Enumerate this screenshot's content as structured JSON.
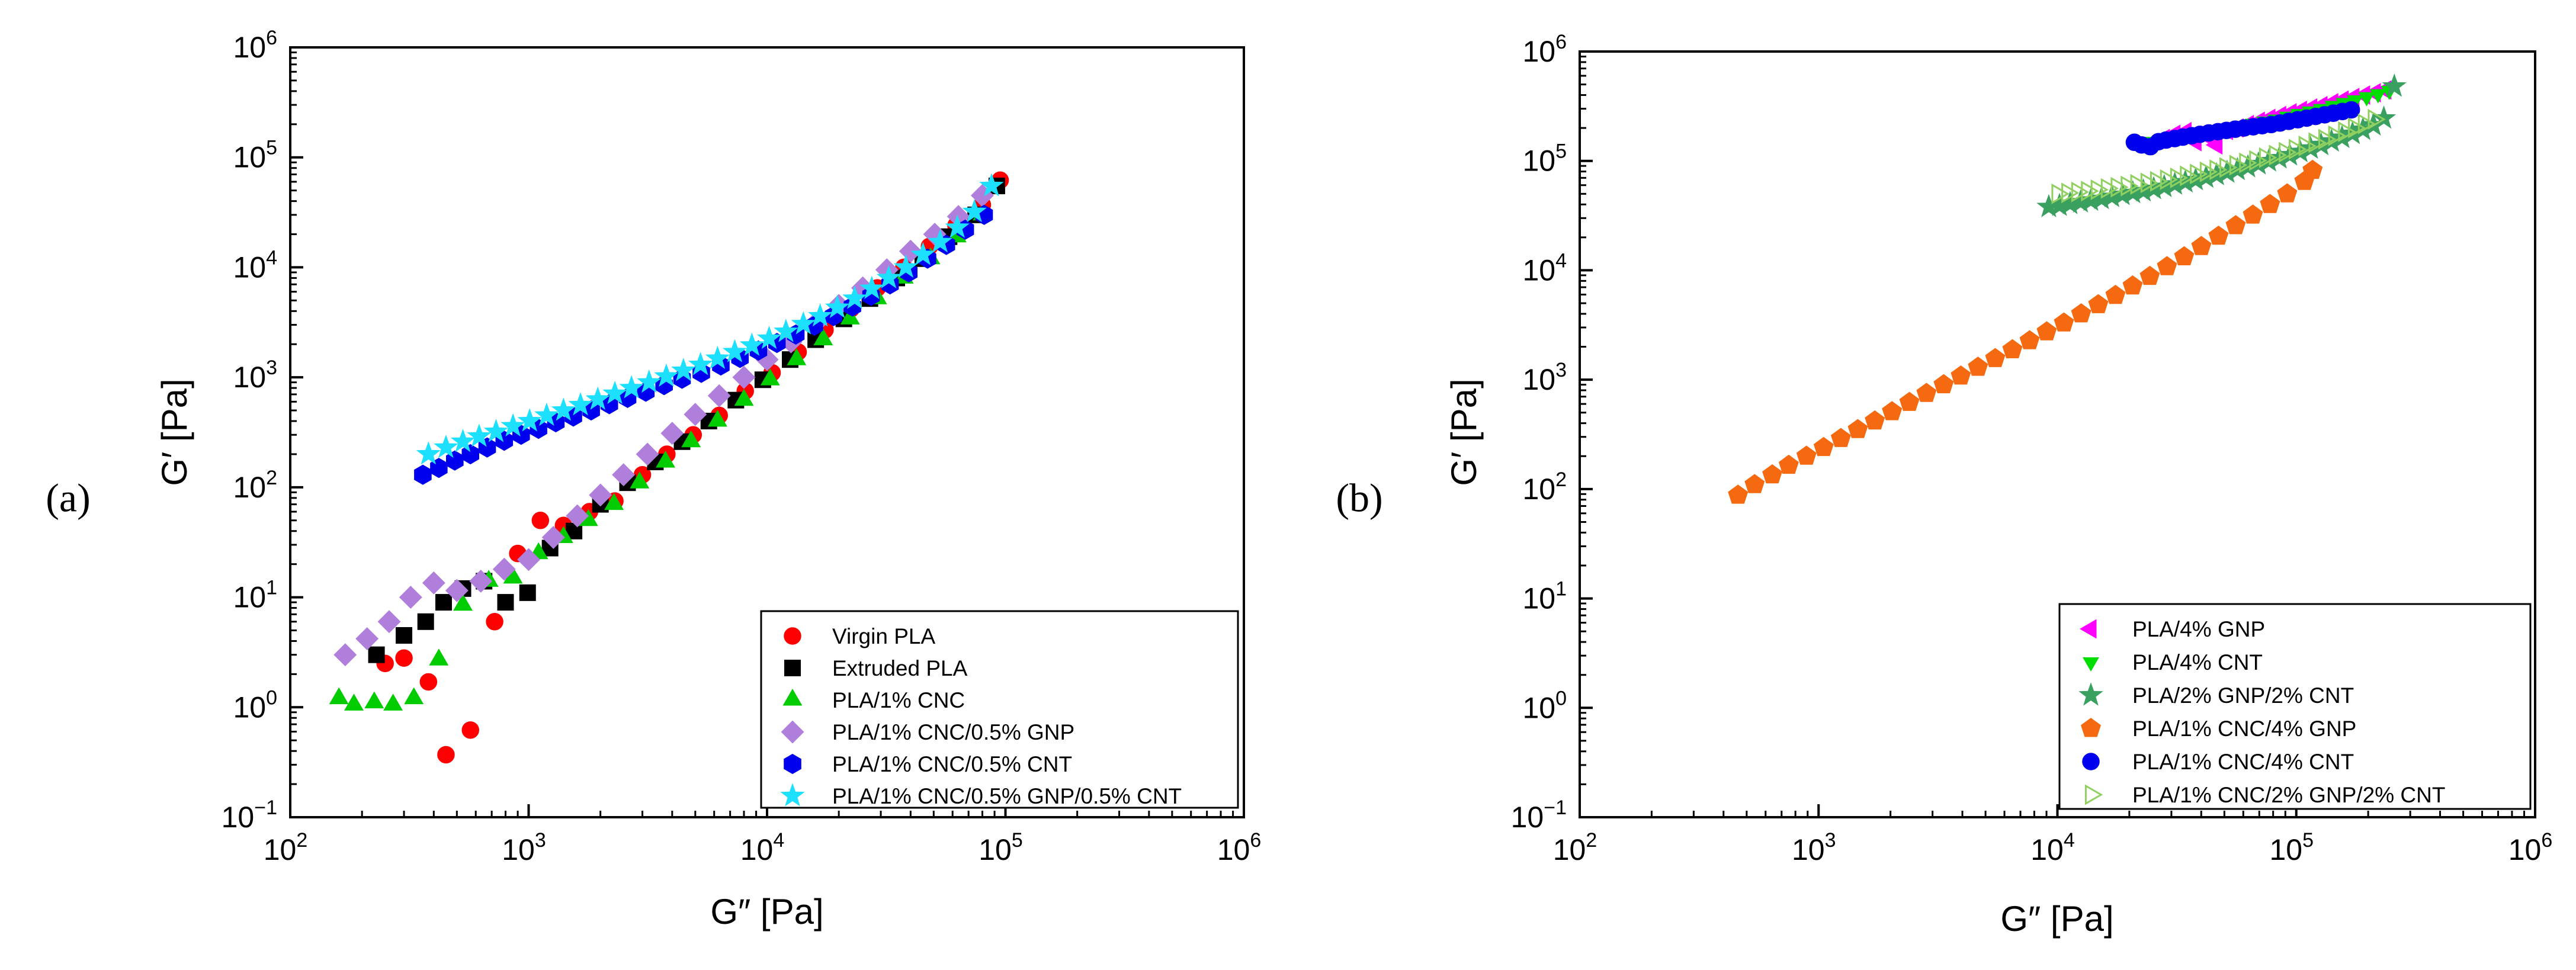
{
  "chart_data": [
    {
      "type": "scatter",
      "panel_label": "(a)",
      "title": "",
      "xlabel": "G″ [Pa]",
      "ylabel": "G′ [Pa]",
      "xscale": "log",
      "yscale": "log",
      "xlim": [
        100,
        1000000
      ],
      "ylim": [
        0.1,
        1000000
      ],
      "x_ticks": [
        {
          "base": "10",
          "exp": "2"
        },
        {
          "base": "10",
          "exp": "3"
        },
        {
          "base": "10",
          "exp": "4"
        },
        {
          "base": "10",
          "exp": "5"
        },
        {
          "base": "10",
          "exp": "6"
        }
      ],
      "y_ticks": [
        {
          "base": "10",
          "exp": "−1"
        },
        {
          "base": "10",
          "exp": "0"
        },
        {
          "base": "10",
          "exp": "1"
        },
        {
          "base": "10",
          "exp": "2"
        },
        {
          "base": "10",
          "exp": "3"
        },
        {
          "base": "10",
          "exp": "4"
        },
        {
          "base": "10",
          "exp": "5"
        },
        {
          "base": "10",
          "exp": "6"
        }
      ],
      "legend_position": "bottom-right",
      "series": [
        {
          "name": "Virgin PLA",
          "marker": "circle",
          "color": "#ff0000",
          "filled": true,
          "x": [
            250,
            300,
            380,
            450,
            570,
            720,
            900,
            1120,
            1400,
            1800,
            2300,
            3000,
            3800,
            4900,
            6300,
            8100,
            10500,
            13500,
            17500,
            22500,
            29000,
            37500,
            48000,
            62000,
            80000,
            95000
          ],
          "y": [
            2.5,
            2.8,
            1.7,
            0.37,
            0.62,
            6,
            25,
            50,
            45,
            60,
            75,
            130,
            200,
            300,
            450,
            750,
            1100,
            1700,
            2700,
            4200,
            6500,
            10000,
            15500,
            24000,
            37000,
            62000
          ]
        },
        {
          "name": "Extruded PLA",
          "marker": "square",
          "color": "#000000",
          "filled": true,
          "x": [
            230,
            300,
            370,
            440,
            530,
            650,
            800,
            990,
            1230,
            1550,
            2000,
            2600,
            3400,
            4400,
            5700,
            7400,
            9600,
            12500,
            16000,
            21000,
            27000,
            35000,
            45000,
            58000,
            75000,
            92000
          ],
          "y": [
            3,
            4.5,
            6,
            9,
            12,
            14,
            9,
            11,
            28,
            40,
            70,
            110,
            170,
            260,
            400,
            620,
            950,
            1450,
            2200,
            3400,
            5200,
            8000,
            12000,
            19000,
            30000,
            55000
          ]
        },
        {
          "name": "PLA/1% CNC",
          "marker": "triangle",
          "color": "#00cc00",
          "filled": true,
          "x": [
            160,
            185,
            225,
            270,
            330,
            420,
            530,
            680,
            860,
            1100,
            1400,
            1780,
            2280,
            2920,
            3750,
            4800,
            6200,
            8000,
            10300,
            13300,
            17200,
            22300,
            29000,
            37500,
            48500,
            62500,
            80000
          ],
          "y": [
            1.2,
            1.05,
            1.1,
            1.05,
            1.2,
            2.7,
            8.5,
            14,
            15,
            25,
            35,
            50,
            70,
            110,
            170,
            260,
            400,
            620,
            950,
            1450,
            2200,
            3400,
            5200,
            8000,
            12000,
            19000,
            30000
          ]
        },
        {
          "name": "PLA/1% CNC/0.5% GNP",
          "marker": "diamond",
          "color": "#b07fdb",
          "filled": true,
          "x": [
            170,
            210,
            260,
            320,
            400,
            500,
            630,
            790,
            1000,
            1270,
            1600,
            2000,
            2500,
            3150,
            4000,
            5000,
            6300,
            8000,
            10000,
            12600,
            16000,
            20000,
            25200,
            31800,
            40000,
            50500,
            63500,
            80000
          ],
          "y": [
            3,
            4.2,
            6,
            10,
            13.5,
            11.5,
            14,
            18,
            22,
            35,
            55,
            85,
            130,
            200,
            310,
            460,
            680,
            1000,
            1450,
            2100,
            3100,
            4500,
            6500,
            9500,
            14000,
            20000,
            29000,
            45000
          ]
        },
        {
          "name": "PLA/1% CNC/0.5% CNT",
          "marker": "hexagon",
          "color": "#0000ee",
          "filled": true,
          "x": [
            360,
            420,
            490,
            570,
            670,
            790,
            930,
            1100,
            1300,
            1540,
            1830,
            2180,
            2600,
            3100,
            3700,
            4400,
            5300,
            6400,
            7700,
            9200,
            11000,
            13200,
            15800,
            19000,
            22800,
            27300,
            32800,
            39300,
            47100,
            56500,
            67800,
            81400
          ],
          "y": [
            130,
            150,
            175,
            200,
            230,
            265,
            300,
            340,
            390,
            440,
            500,
            570,
            650,
            740,
            850,
            970,
            1100,
            1280,
            1500,
            1750,
            2050,
            2450,
            2950,
            3600,
            4400,
            5500,
            7000,
            9000,
            12000,
            16000,
            22000,
            30000
          ]
        },
        {
          "name": "PLA/1% CNC/0.5% GNP/0.5% CNT",
          "marker": "star",
          "color": "#1de0ff",
          "filled": true,
          "x": [
            380,
            450,
            530,
            620,
            730,
            860,
            1010,
            1190,
            1400,
            1650,
            1950,
            2300,
            2700,
            3200,
            3780,
            4460,
            5260,
            6200,
            7320,
            8640,
            10200,
            12000,
            14200,
            16700,
            19700,
            23300,
            27500,
            32400,
            38200,
            45100,
            53200,
            62800,
            74100,
            87400
          ],
          "y": [
            200,
            230,
            260,
            290,
            320,
            360,
            400,
            450,
            500,
            560,
            630,
            710,
            800,
            900,
            1020,
            1150,
            1300,
            1480,
            1700,
            1950,
            2250,
            2600,
            3050,
            3600,
            4300,
            5200,
            6400,
            8000,
            10000,
            13000,
            17000,
            23000,
            32000,
            55000
          ]
        }
      ]
    },
    {
      "type": "scatter",
      "panel_label": "(b)",
      "title": "",
      "xlabel": "G″ [Pa]",
      "ylabel": "G′ [Pa]",
      "xscale": "log",
      "yscale": "log",
      "xlim": [
        100,
        1000000
      ],
      "ylim": [
        0.1,
        1000000
      ],
      "x_ticks": [
        {
          "base": "10",
          "exp": "2"
        },
        {
          "base": "10",
          "exp": "3"
        },
        {
          "base": "10",
          "exp": "4"
        },
        {
          "base": "10",
          "exp": "5"
        },
        {
          "base": "10",
          "exp": "6"
        }
      ],
      "y_ticks": [
        {
          "base": "10",
          "exp": "−1"
        },
        {
          "base": "10",
          "exp": "0"
        },
        {
          "base": "10",
          "exp": "1"
        },
        {
          "base": "10",
          "exp": "2"
        },
        {
          "base": "10",
          "exp": "3"
        },
        {
          "base": "10",
          "exp": "4"
        },
        {
          "base": "10",
          "exp": "5"
        },
        {
          "base": "10",
          "exp": "6"
        }
      ],
      "legend_position": "bottom-right",
      "series": [
        {
          "name": "PLA/4% GNP",
          "marker": "triangle-left",
          "color": "#ff00ff",
          "filled": true,
          "x": [
            28000,
            31000,
            34500,
            38000,
            42000,
            46500,
            51500,
            57000,
            63000,
            70000,
            77500,
            86000,
            95000,
            105000,
            116000,
            128000,
            142000,
            157000,
            174000,
            193000,
            214000,
            237000
          ],
          "y": [
            160000,
            175000,
            185000,
            150000,
            170000,
            140000,
            190000,
            200000,
            215000,
            230000,
            245000,
            260000,
            275000,
            290000,
            305000,
            320000,
            340000,
            360000,
            380000,
            400000,
            420000,
            445000
          ]
        },
        {
          "name": "PLA/4% CNT",
          "marker": "triangle-down",
          "color": "#00dd00",
          "filled": true,
          "x": [
            22000,
            24500,
            27500,
            30500,
            34000,
            38000,
            42500,
            47500,
            53000,
            59000,
            66000,
            73500,
            82000,
            91500,
            102000,
            114000,
            127000,
            142000,
            158000,
            176000,
            197000,
            220000,
            245000
          ],
          "y": [
            145000,
            150000,
            160000,
            165000,
            170000,
            175000,
            185000,
            190000,
            200000,
            210000,
            220000,
            230000,
            240000,
            255000,
            270000,
            285000,
            300000,
            320000,
            340000,
            360000,
            385000,
            410000,
            440000
          ]
        },
        {
          "name": "PLA/2% GNP/2% CNT",
          "marker": "star",
          "color": "#3aa060",
          "filled": true,
          "x": [
            9200,
            10200,
            11300,
            12500,
            13800,
            15300,
            16900,
            18700,
            20700,
            22900,
            25300,
            28000,
            31000,
            34300,
            37900,
            41900,
            46400,
            51300,
            56700,
            62700,
            69400,
            76700,
            84900,
            93900,
            103800,
            114800,
            127000,
            140500,
            155400,
            171900,
            190100,
            210300,
            232600,
            257300
          ],
          "y": [
            38000,
            39000,
            40500,
            42000,
            43500,
            45000,
            47000,
            49000,
            51000,
            53000,
            55500,
            58000,
            61000,
            64000,
            67000,
            70500,
            74500,
            78500,
            83000,
            88000,
            93500,
            99500,
            106000,
            113000,
            121000,
            130000,
            140000,
            151000,
            163000,
            177000,
            193000,
            212000,
            245000,
            480000
          ]
        },
        {
          "name": "PLA/1% CNC/4% GNP",
          "marker": "pentagon",
          "color": "#f56a10",
          "filled": true,
          "x": [
            460,
            540,
            640,
            750,
            890,
            1050,
            1240,
            1460,
            1720,
            2030,
            2400,
            2830,
            3340,
            3940,
            4650,
            5490,
            6480,
            7650,
            9020,
            10650,
            12570,
            14830,
            17500,
            20650,
            24370,
            28760,
            33940,
            40050,
            47260,
            55770,
            65810,
            77650,
            91630,
            108100,
            117000
          ],
          "y": [
            88,
            110,
            135,
            165,
            200,
            240,
            290,
            350,
            420,
            510,
            620,
            750,
            900,
            1080,
            1300,
            1560,
            1880,
            2270,
            2740,
            3300,
            4000,
            4850,
            5900,
            7200,
            8800,
            10800,
            13300,
            16500,
            20500,
            25600,
            32000,
            40000,
            50000,
            65000,
            82000
          ]
        },
        {
          "name": "PLA/1% CNC/4% CNT",
          "marker": "circle",
          "color": "#0000ee",
          "filled": true,
          "x": [
            21000,
            22500,
            24500,
            26500,
            28500,
            31000,
            33500,
            36500,
            39500,
            43000,
            47000,
            51000,
            55500,
            60500,
            66000,
            72000,
            78500,
            85500,
            93000,
            101500,
            110500,
            120500,
            131500,
            143000,
            156000,
            170000
          ],
          "y": [
            148000,
            140000,
            135000,
            150000,
            155000,
            160000,
            165000,
            170000,
            175000,
            180000,
            185000,
            190000,
            195000,
            200000,
            205000,
            210000,
            215000,
            222000,
            230000,
            238000,
            246000,
            255000,
            264000,
            273000,
            283000,
            293000
          ]
        },
        {
          "name": "PLA/1% CNC/2% GNP/2% CNT",
          "marker": "triangle-right",
          "color": "#90d060",
          "filled": false,
          "x": [
            10000,
            11000,
            12100,
            13300,
            14600,
            16100,
            17700,
            19500,
            21400,
            23600,
            25900,
            28500,
            31400,
            34500,
            38000,
            41800,
            45900,
            50500,
            55600,
            61100,
            67300,
            74000,
            81400,
            89500,
            98500,
            108300,
            119200,
            131100,
            144200,
            158600,
            174500,
            191900,
            211100
          ],
          "y": [
            50000,
            51000,
            52000,
            53000,
            54500,
            56000,
            57500,
            59000,
            61000,
            63000,
            65000,
            67500,
            70000,
            73000,
            76000,
            79500,
            83000,
            87000,
            91500,
            96000,
            101000,
            107000,
            113000,
            120000,
            128000,
            137000,
            147000,
            158000,
            170000,
            185000,
            200000,
            218000,
            240000
          ]
        }
      ]
    }
  ]
}
